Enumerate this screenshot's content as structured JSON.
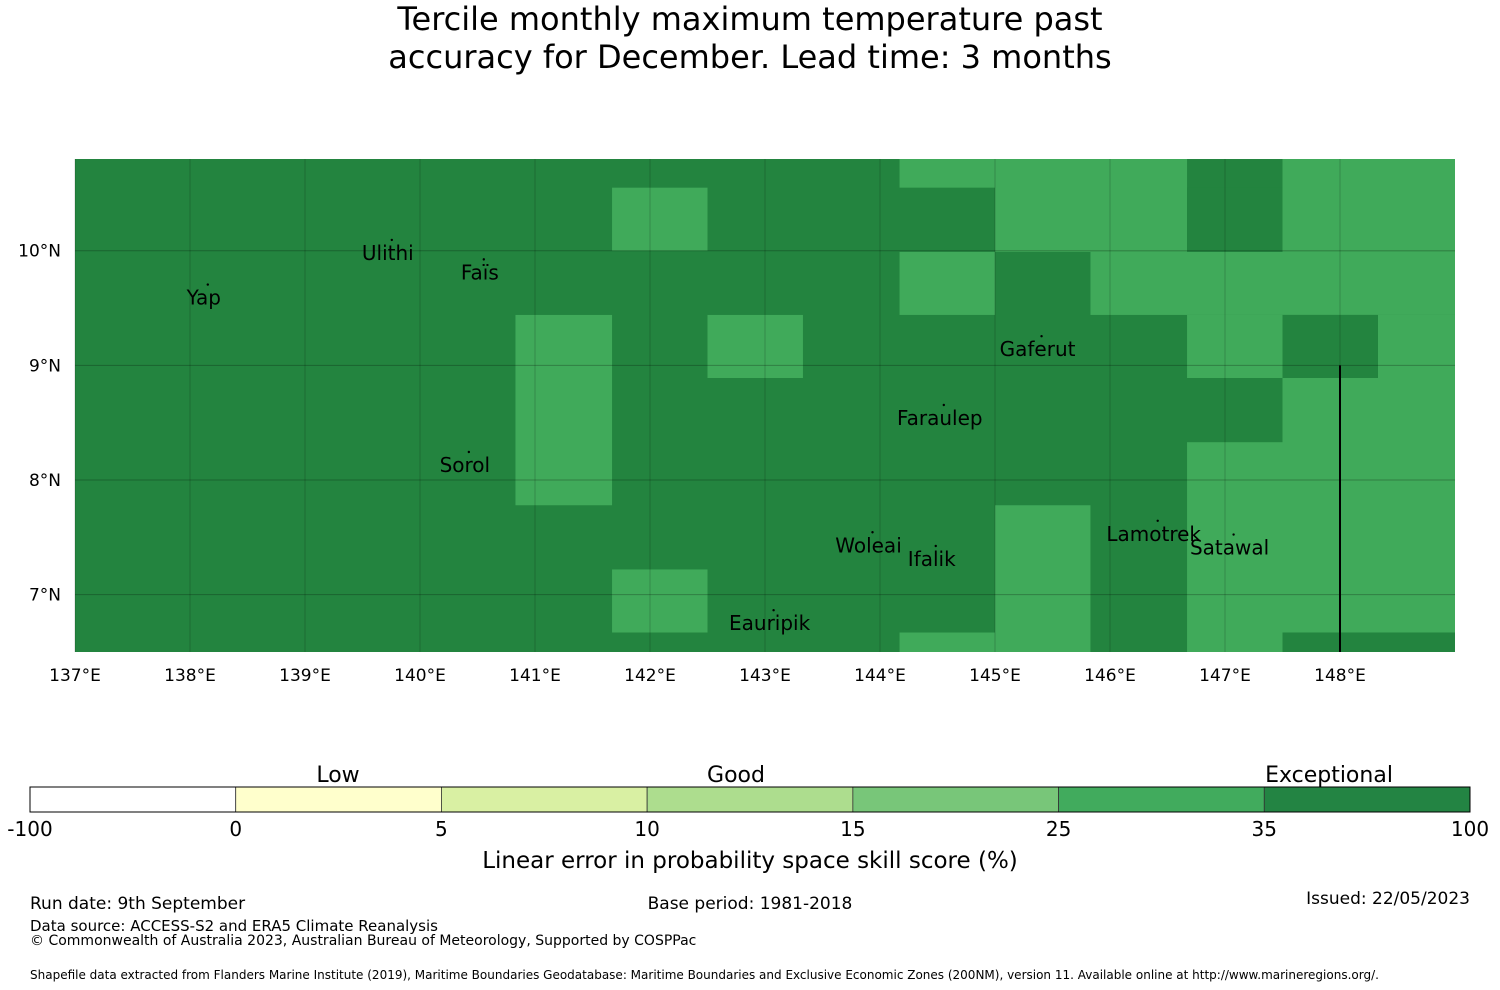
{
  "title": {
    "line1": "Tercile monthly maximum temperature past",
    "line2": "accuracy for December. Lead time: 3 months"
  },
  "map": {
    "lon_range": [
      137,
      149
    ],
    "lat_range": [
      6.5,
      10.8
    ],
    "lon_ticks": [
      "137°E",
      "138°E",
      "139°E",
      "140°E",
      "141°E",
      "142°E",
      "143°E",
      "144°E",
      "145°E",
      "146°E",
      "147°E",
      "148°E"
    ],
    "lat_ticks": [
      "10°N",
      "9°N",
      "8°N",
      "7°N"
    ],
    "colors": {
      "dark": "#23843f",
      "mid": "#40aa5a"
    },
    "grid_lon0": 136.17,
    "grid_lat0": 6.1,
    "cell_lon": 0.833,
    "cell_lat": 0.556,
    "grid_rows": [
      "DDDDDDDDDDDDDDDDDDDDDD",
      "DDDDDDDDDDDDDDDDDDDDDD",
      "DDDDDDDDDMMDDDDMMMDDDD",
      "DDDDDDDDDDDDDDDDDDDDDD",
      "DDDDDDDDMMDDDDDDMMMDDD",
      "DDDDDDDDDDDDDDDDDDDDDD",
      "DDDDDDDDDDDDDDDDDDDDDD",
      "DDDDDDDDDDDDDDDDDDDDDD",
      "DDDDDDDDDDDDDDDDDDDDDD",
      "DDDDDDDDDDDDDDDDDDDDDD",
      "DDDDDDDDDDDDDDDDDDDDDD",
      "DDDDDDDDDDDDDDDDDDDDDD",
      "DDDDDDDDDDDDDDDDDDDDDD",
      "DDDDDDDDDDDDDDDDDDDDDD"
    ],
    "islands": [
      {
        "name": "Ulithi",
        "lon": 139.72,
        "lat": 9.92
      },
      {
        "name": "Faïs",
        "lon": 140.52,
        "lat": 9.75
      },
      {
        "name": "Yap",
        "lon": 138.12,
        "lat": 9.53
      },
      {
        "name": "Gaferut",
        "lon": 145.37,
        "lat": 9.08
      },
      {
        "name": "Faraulep",
        "lon": 144.52,
        "lat": 8.48
      },
      {
        "name": "Sorol",
        "lon": 140.39,
        "lat": 8.07
      },
      {
        "name": "Woleai",
        "lon": 143.9,
        "lat": 7.37
      },
      {
        "name": "Ifalik",
        "lon": 144.45,
        "lat": 7.25
      },
      {
        "name": "Lamotrek",
        "lon": 146.38,
        "lat": 7.47
      },
      {
        "name": "Satawal",
        "lon": 147.04,
        "lat": 7.35
      },
      {
        "name": "Eauripik",
        "lon": 143.04,
        "lat": 6.69
      }
    ],
    "boundary_line": {
      "lon": 148,
      "lat_from": 6.5,
      "lat_to": 9.0
    }
  },
  "colorbar": {
    "category_labels": [
      "Low",
      "Good",
      "Exceptional"
    ],
    "tick_labels": [
      "-100",
      "0",
      "5",
      "10",
      "15",
      "25",
      "35",
      "100"
    ],
    "colors": [
      "#ffffff",
      "#ffffcc",
      "#d9f0a3",
      "#addd8e",
      "#78c679",
      "#41ab5d",
      "#238443"
    ],
    "axis_label": "Linear error in probability space skill score (%)"
  },
  "footer": {
    "run_date": "Run date: 9th September",
    "data_source": "Data source: ACCESS-S2 and ERA5 Climate Reanalysis",
    "copyright": "© Commonwealth of Australia 2023, Australian Bureau of Meteorology, Supported by COSPPac",
    "base_period": "Base period: 1981-2018",
    "issued": "Issued: 22/05/2023",
    "shapefile": "Shapefile data extracted from Flanders Marine Institute (2019), Maritime Boundaries Geodatabase: Maritime Boundaries and Exclusive Economic Zones (200NM), version 11. Available online at http://www.marineregions.org/."
  }
}
